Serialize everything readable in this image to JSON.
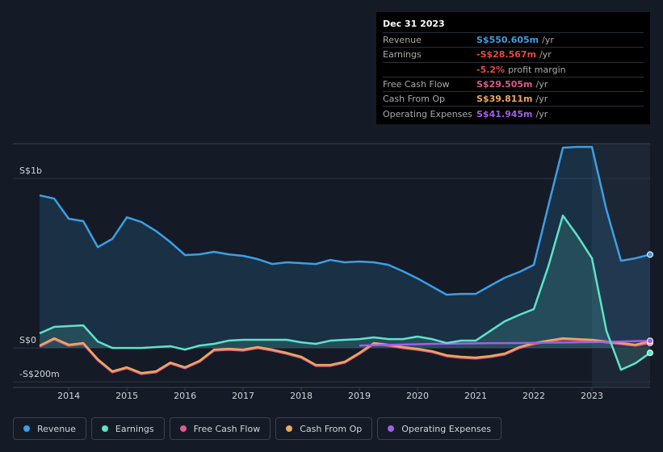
{
  "chart_data": {
    "type": "line",
    "x": [
      2013.5,
      2013.75,
      2014,
      2014.25,
      2014.5,
      2014.75,
      2015,
      2015.25,
      2015.5,
      2015.75,
      2016,
      2016.25,
      2016.5,
      2016.75,
      2017,
      2017.25,
      2017.5,
      2017.75,
      2018,
      2018.25,
      2018.5,
      2018.75,
      2019,
      2019.25,
      2019.5,
      2019.75,
      2020,
      2020.25,
      2020.5,
      2020.75,
      2021,
      2021.25,
      2021.5,
      2021.75,
      2022,
      2022.25,
      2022.5,
      2022.75,
      2023,
      2023.25,
      2023.5,
      2023.75,
      2024
    ],
    "xlim": [
      2013.04,
      2024.0
    ],
    "xticks": [
      2014,
      2015,
      2016,
      2017,
      2018,
      2019,
      2020,
      2021,
      2022,
      2023
    ],
    "ylim": [
      -233,
      1205
    ],
    "yticks": [
      {
        "value": 1000,
        "label": "S$1b"
      },
      {
        "value": 0,
        "label": "S$0"
      },
      {
        "value": -200,
        "label": "-S$200m"
      }
    ],
    "grid": true,
    "series": [
      {
        "name": "Revenue",
        "color": "#3b9fe6",
        "area": true,
        "values": [
          900,
          881,
          762,
          748,
          595,
          643,
          771,
          743,
          690,
          624,
          548,
          552,
          567,
          552,
          543,
          524,
          495,
          505,
          500,
          495,
          519,
          505,
          510,
          505,
          490,
          452,
          410,
          362,
          314,
          319,
          319,
          367,
          414,
          448,
          490,
          838,
          1181,
          1186,
          1186,
          814,
          514,
          529,
          551
        ]
      },
      {
        "name": "Earnings",
        "color": "#5fe3c9",
        "area": true,
        "values": [
          86,
          124,
          129,
          133,
          38,
          0,
          0,
          0,
          5,
          10,
          -10,
          14,
          24,
          43,
          48,
          48,
          48,
          48,
          33,
          24,
          43,
          48,
          52,
          62,
          52,
          52,
          67,
          52,
          29,
          43,
          43,
          100,
          157,
          195,
          229,
          481,
          781,
          662,
          529,
          100,
          -129,
          -90,
          -29
        ]
      },
      {
        "name": "Free Cash Flow",
        "color": "#e0598b",
        "area": false,
        "values": [
          8,
          51,
          13,
          23,
          -73,
          -144,
          -120,
          -154,
          -144,
          -92,
          -120,
          -82,
          -16,
          -11,
          -16,
          -1,
          -16,
          -35,
          -58,
          -106,
          -106,
          -87,
          -35,
          23,
          13,
          -1,
          -11,
          -25,
          -49,
          -58,
          -63,
          -54,
          -39,
          -1,
          23,
          37,
          51,
          46,
          42,
          32,
          23,
          13,
          30
        ]
      },
      {
        "name": "Cash From Op",
        "color": "#eaa861",
        "area": false,
        "values": [
          14,
          57,
          19,
          29,
          -67,
          -138,
          -114,
          -148,
          -138,
          -86,
          -114,
          -76,
          -10,
          -5,
          -10,
          5,
          -10,
          -29,
          -52,
          -100,
          -100,
          -81,
          -29,
          29,
          19,
          5,
          -5,
          -19,
          -43,
          -52,
          -57,
          -48,
          -33,
          5,
          29,
          43,
          57,
          52,
          48,
          38,
          29,
          19,
          40
        ]
      },
      {
        "name": "Operating Expenses",
        "color": "#a35ee8",
        "area": false,
        "values": [
          null,
          null,
          null,
          null,
          null,
          null,
          null,
          null,
          null,
          null,
          null,
          null,
          null,
          null,
          null,
          null,
          null,
          null,
          null,
          null,
          null,
          null,
          14,
          16,
          18,
          20,
          22,
          24,
          25,
          26,
          27,
          28,
          28,
          29,
          30,
          31,
          32,
          33,
          34,
          36,
          38,
          40,
          42
        ]
      }
    ],
    "tooltip": {
      "date": "Dec 31 2023",
      "rows": [
        {
          "label": "Revenue",
          "value": "S$550.605m",
          "unit": "/yr"
        },
        {
          "label": "Earnings",
          "value": "-S$28.567m",
          "unit": "/yr"
        },
        {
          "value": "-5.2%",
          "unit": "profit margin"
        },
        {
          "label": "Free Cash Flow",
          "value": "S$29.505m",
          "unit": "/yr"
        },
        {
          "label": "Cash From Op",
          "value": "S$39.811m",
          "unit": "/yr"
        },
        {
          "label": "Operating Expenses",
          "value": "S$41.945m",
          "unit": "/yr"
        }
      ]
    }
  }
}
